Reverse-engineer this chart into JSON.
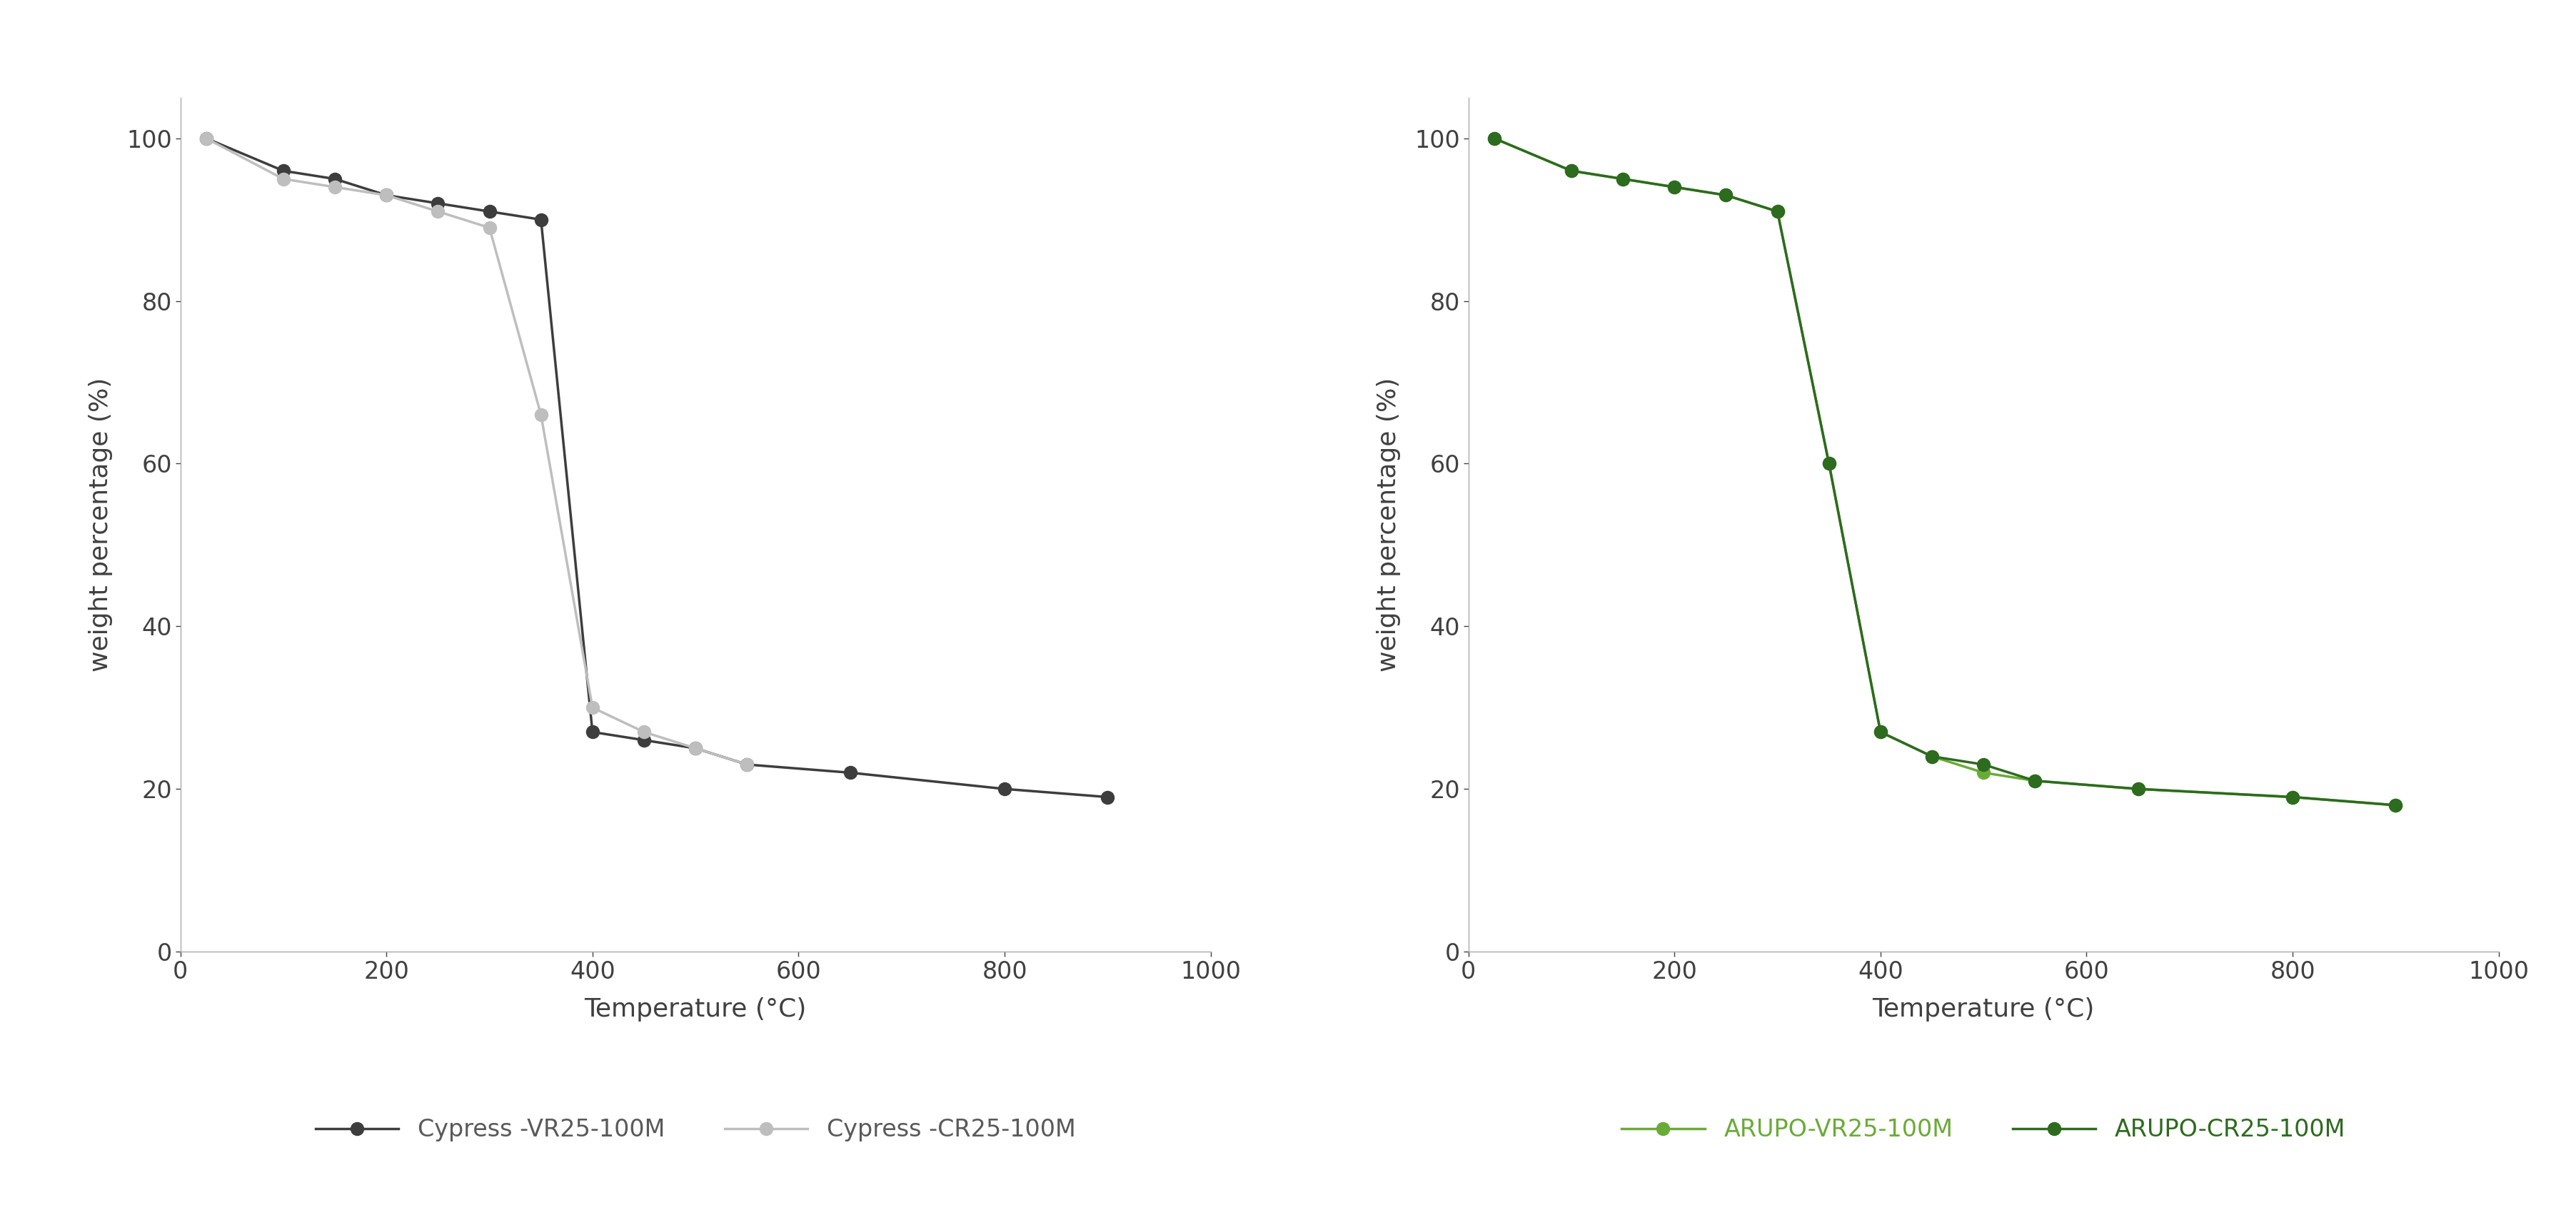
{
  "left_plot": {
    "ylabel": "weight percentage (%)",
    "xlabel": "Temperature (°C)",
    "xlim": [
      0,
      1000
    ],
    "ylim": [
      0,
      105
    ],
    "xticks": [
      0,
      200,
      400,
      600,
      800,
      1000
    ],
    "yticks": [
      0,
      20,
      40,
      60,
      80,
      100
    ],
    "series": [
      {
        "label": "Cypress -VR25-100M",
        "color": "#3d3d3d",
        "x": [
          25,
          100,
          150,
          200,
          250,
          300,
          350,
          400,
          450,
          500,
          550,
          650,
          800,
          900
        ],
        "y": [
          100,
          96,
          95,
          93,
          92,
          91,
          90,
          27,
          26,
          25,
          23,
          22,
          20,
          19
        ]
      },
      {
        "label": "Cypress -CR25-100M",
        "color": "#bebebe",
        "x": [
          25,
          100,
          150,
          200,
          250,
          300,
          350,
          400,
          450,
          500,
          550
        ],
        "y": [
          100,
          95,
          94,
          93,
          91,
          89,
          66,
          30,
          27,
          25,
          23
        ]
      }
    ]
  },
  "right_plot": {
    "ylabel": "weight percentage (%)",
    "xlabel": "Temperature (°C)",
    "xlim": [
      0,
      1000
    ],
    "ylim": [
      0,
      105
    ],
    "xticks": [
      0,
      200,
      400,
      600,
      800,
      1000
    ],
    "yticks": [
      0,
      20,
      40,
      60,
      80,
      100
    ],
    "series": [
      {
        "label": "ARUPO-VR25-100M",
        "color": "#6aab38",
        "x": [
          25,
          100,
          150,
          200,
          250,
          300,
          350,
          400,
          450,
          500,
          550,
          650,
          800,
          900
        ],
        "y": [
          100,
          96,
          95,
          94,
          93,
          91,
          60,
          27,
          24,
          22,
          21,
          20,
          19,
          18
        ]
      },
      {
        "label": "ARUPO-CR25-100M",
        "color": "#2d6b1f",
        "x": [
          25,
          100,
          150,
          200,
          250,
          300,
          350,
          400,
          450,
          500,
          550,
          650,
          800,
          900
        ],
        "y": [
          100,
          96,
          95,
          94,
          93,
          91,
          60,
          27,
          24,
          23,
          21,
          20,
          19,
          18
        ]
      }
    ]
  },
  "background_color": "#ffffff",
  "label_fontsize": 26,
  "tick_fontsize": 24,
  "legend_fontsize": 24,
  "linewidth": 2.5,
  "markersize": 13,
  "spine_color": "#aaaaaa",
  "tick_color": "#404040"
}
